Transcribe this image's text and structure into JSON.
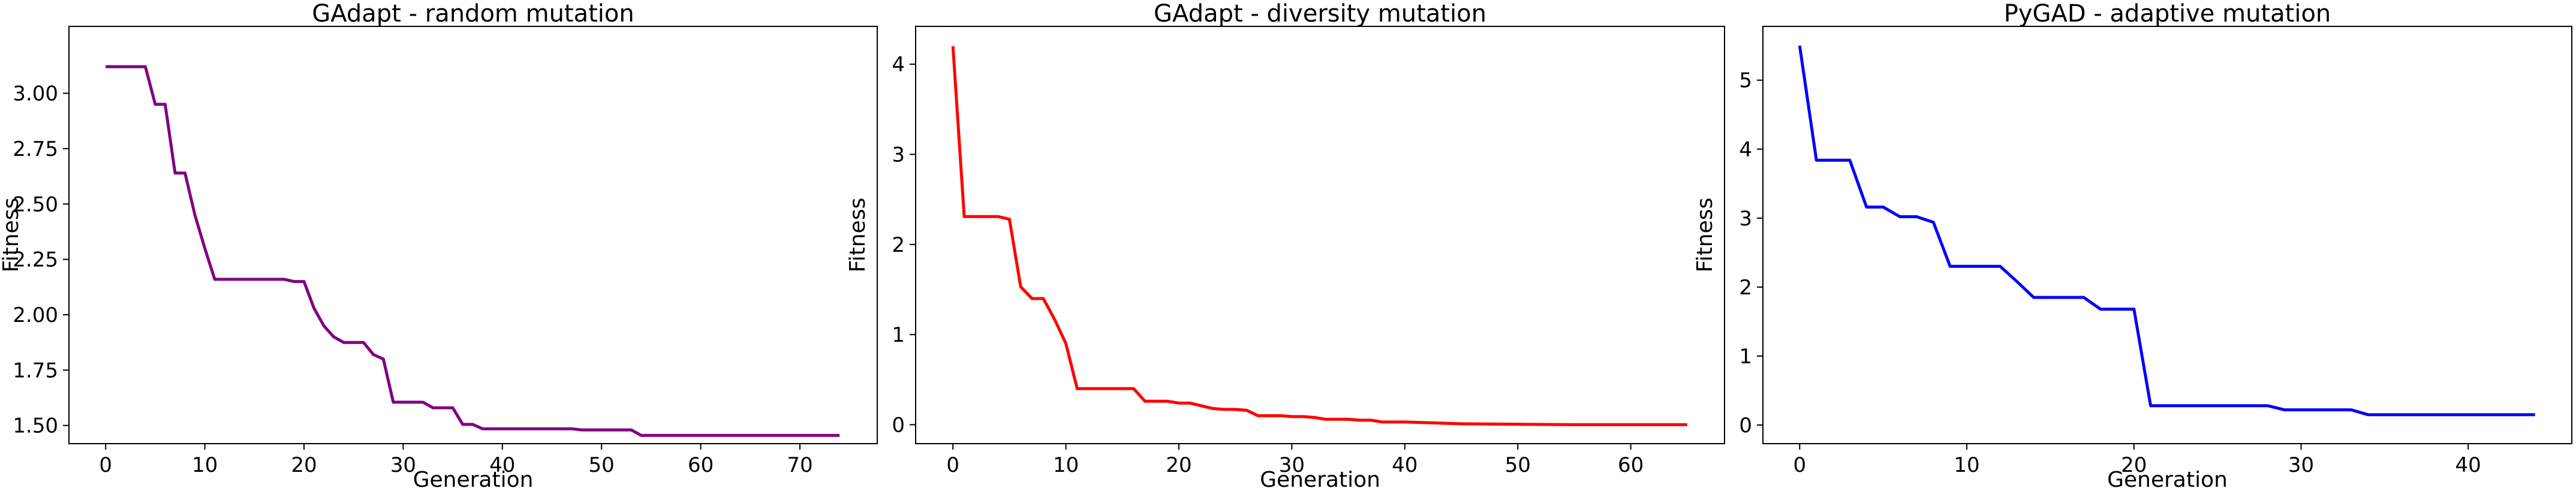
{
  "chart_data": [
    {
      "type": "line",
      "title": "GAdapt - random mutation",
      "xlabel": "Generation",
      "ylabel": "Fitness",
      "xlim": [
        -3.7,
        77.8
      ],
      "ylim": [
        1.418,
        3.302
      ],
      "xticks": [
        0,
        10,
        20,
        30,
        40,
        50,
        60,
        70
      ],
      "xtick_labels": [
        "0",
        "10",
        "20",
        "30",
        "40",
        "50",
        "60",
        "70"
      ],
      "yticks": [
        1.5,
        1.75,
        2.0,
        2.25,
        2.5,
        2.75,
        3.0
      ],
      "ytick_labels": [
        "1.50",
        "1.75",
        "2.00",
        "2.25",
        "2.50",
        "2.75",
        "3.00"
      ],
      "grid": false,
      "series": [
        {
          "color": "#800080",
          "x": [
            0,
            4,
            5,
            6,
            7,
            8,
            9,
            10,
            11,
            12,
            13,
            14,
            15,
            16,
            17,
            18,
            19,
            20,
            21,
            22,
            23,
            24,
            25,
            26,
            27,
            28,
            29,
            30,
            31,
            32,
            33,
            34,
            35,
            36,
            37,
            38,
            39,
            40,
            47,
            48,
            53,
            54,
            65,
            74
          ],
          "y": [
            3.12,
            3.12,
            2.95,
            2.95,
            2.64,
            2.64,
            2.45,
            2.3,
            2.16,
            2.16,
            2.16,
            2.16,
            2.16,
            2.16,
            2.16,
            2.16,
            2.15,
            2.15,
            2.03,
            1.95,
            1.9,
            1.875,
            1.875,
            1.875,
            1.82,
            1.8,
            1.605,
            1.605,
            1.605,
            1.605,
            1.58,
            1.58,
            1.58,
            1.505,
            1.505,
            1.485,
            1.485,
            1.485,
            1.485,
            1.48,
            1.48,
            1.455,
            1.455,
            1.455
          ]
        }
      ]
    },
    {
      "type": "line",
      "title": "GAdapt - diversity mutation",
      "xlabel": "Generation",
      "ylabel": "Fitness",
      "xlim": [
        -3.3,
        68.3
      ],
      "ylim": [
        -0.21,
        4.42
      ],
      "xticks": [
        0,
        10,
        20,
        30,
        40,
        50,
        60
      ],
      "xtick_labels": [
        "0",
        "10",
        "20",
        "30",
        "40",
        "50",
        "60"
      ],
      "yticks": [
        0,
        1,
        2,
        3,
        4
      ],
      "ytick_labels": [
        "0",
        "1",
        "2",
        "3",
        "4"
      ],
      "grid": false,
      "series": [
        {
          "color": "#ff0000",
          "x": [
            0,
            1,
            2,
            3,
            4,
            5,
            6,
            7,
            8,
            9,
            10,
            11,
            12,
            13,
            14,
            15,
            16,
            17,
            18,
            19,
            20,
            21,
            22,
            23,
            24,
            25,
            26,
            27,
            28,
            29,
            30,
            31,
            32,
            33,
            34,
            35,
            36,
            37,
            38,
            40,
            45,
            55,
            65
          ],
          "y": [
            4.2,
            2.31,
            2.31,
            2.31,
            2.31,
            2.28,
            1.53,
            1.4,
            1.4,
            1.17,
            0.9,
            0.4,
            0.4,
            0.4,
            0.4,
            0.4,
            0.4,
            0.26,
            0.26,
            0.26,
            0.24,
            0.24,
            0.21,
            0.18,
            0.17,
            0.17,
            0.16,
            0.1,
            0.1,
            0.1,
            0.09,
            0.09,
            0.08,
            0.06,
            0.06,
            0.06,
            0.05,
            0.05,
            0.03,
            0.03,
            0.01,
            0.0,
            0.0
          ]
        }
      ]
    },
    {
      "type": "line",
      "title": "PyGAD - adaptive mutation",
      "xlabel": "Generation",
      "ylabel": "Fitness",
      "xlim": [
        -2.2,
        46.2
      ],
      "ylim": [
        -0.27,
        5.78
      ],
      "xticks": [
        0,
        10,
        20,
        30,
        40
      ],
      "xtick_labels": [
        "0",
        "10",
        "20",
        "30",
        "40"
      ],
      "yticks": [
        0,
        1,
        2,
        3,
        4,
        5
      ],
      "ytick_labels": [
        "0",
        "1",
        "2",
        "3",
        "4",
        "5"
      ],
      "grid": false,
      "series": [
        {
          "color": "#0000ff",
          "x": [
            0,
            1,
            2,
            3,
            4,
            5,
            6,
            7,
            8,
            9,
            10,
            11,
            12,
            13,
            14,
            15,
            16,
            17,
            18,
            19,
            20,
            21,
            22,
            28,
            29,
            30,
            33,
            34,
            35,
            44
          ],
          "y": [
            5.5,
            3.84,
            3.84,
            3.84,
            3.16,
            3.16,
            3.02,
            3.02,
            2.94,
            2.3,
            2.3,
            2.3,
            2.3,
            2.08,
            1.85,
            1.85,
            1.85,
            1.85,
            1.68,
            1.68,
            1.68,
            0.28,
            0.28,
            0.28,
            0.22,
            0.22,
            0.22,
            0.15,
            0.15,
            0.15
          ]
        }
      ]
    }
  ]
}
